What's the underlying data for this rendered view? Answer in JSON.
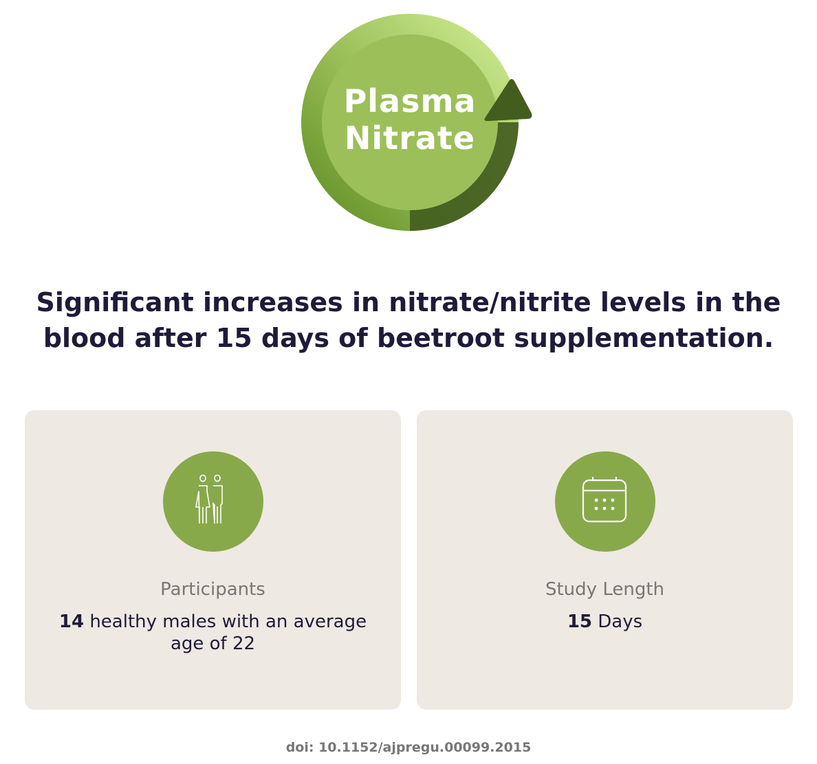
{
  "logo": {
    "line1": "Plasma",
    "line2": "Nitrate",
    "icon": "circular-arrow-up-icon",
    "colors": {
      "light": "#9cbf5a",
      "dark": "#435d1f"
    }
  },
  "headline": {
    "line1": "Significant increases in nitrate/nitrite levels in the",
    "line2": "blood after 15 days of beetroot supplementation."
  },
  "cards": [
    {
      "icon": "people-icon",
      "label": "Participants",
      "value_bold": "14",
      "value_rest": " healthy males with an average age of 22"
    },
    {
      "icon": "calendar-icon",
      "label": "Study Length",
      "value_bold": "15",
      "value_rest": " Days"
    }
  ],
  "doi": "doi: 10.1152/ajpregu.00099.2015",
  "colors": {
    "accent": "#88a94a",
    "card_bg": "#eee9e2",
    "text": "#1e1b3a"
  }
}
